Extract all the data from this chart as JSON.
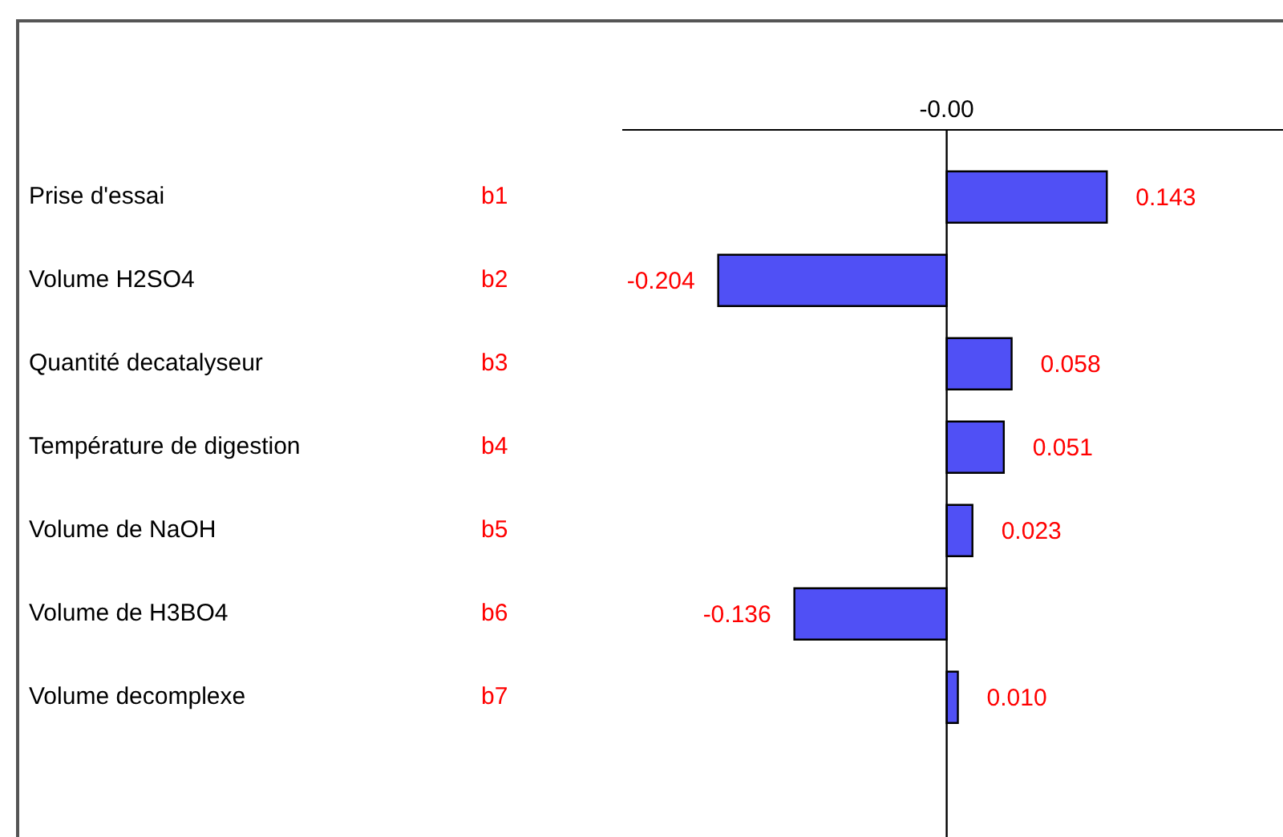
{
  "chart_data": {
    "type": "bar",
    "orientation": "horizontal",
    "categories": [
      "Prise d'essai",
      "Volume H2SO4",
      "Quantité decatalyseur",
      "Température de digestion",
      "Volume de NaOH",
      "Volume de H3BO4",
      "Volume decomplexe"
    ],
    "values": [
      0.143,
      -0.204,
      0.058,
      0.051,
      0.023,
      -0.136,
      0.01
    ],
    "color": "#5050f5",
    "value_labels": [
      "0.143",
      "-0.204",
      "0.058",
      "0.051",
      "0.023",
      "-0.136",
      "0.010"
    ],
    "annotations": [
      "b1",
      "b2",
      "b3",
      "b4",
      "b5",
      "b6",
      "b7",
      "-0.00"
    ],
    "ref_lines": [
      {
        "axis": "x",
        "value": 0,
        "color": "#000000"
      }
    ],
    "grid": false,
    "legend": false
  }
}
